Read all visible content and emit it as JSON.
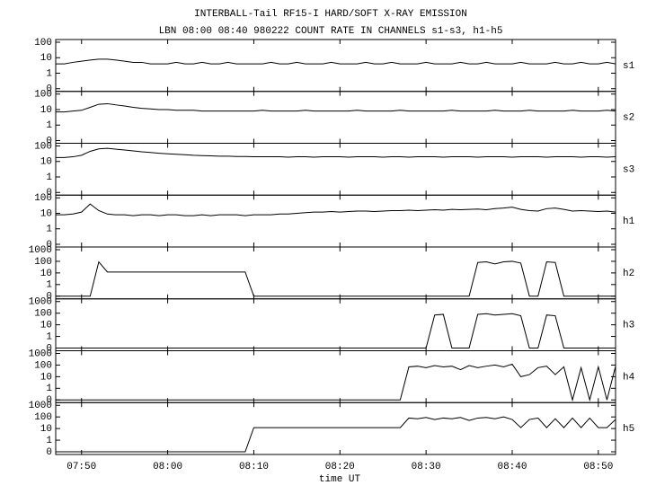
{
  "chart_data": {
    "type": "line",
    "title": "INTERBALL-Tail RF15-I HARD/SOFT X-RAY EMISSION",
    "subtitle": "LBN 08:00 08:40 980222  COUNT RATE IN CHANNELS s1-s3, h1-h5",
    "xlabel": "time UT",
    "yscale": "log",
    "color": "#000000",
    "xlim": [
      "07:47",
      "08:52"
    ],
    "xticks": [
      "07:50",
      "08:00",
      "08:10",
      "08:20",
      "08:30",
      "08:40",
      "08:50"
    ],
    "x": [
      "07:47",
      "07:48",
      "07:49",
      "07:50",
      "07:51",
      "07:52",
      "07:53",
      "07:54",
      "07:55",
      "07:56",
      "07:57",
      "07:58",
      "07:59",
      "08:00",
      "08:01",
      "08:02",
      "08:03",
      "08:04",
      "08:05",
      "08:06",
      "08:07",
      "08:08",
      "08:09",
      "08:10",
      "08:11",
      "08:12",
      "08:13",
      "08:14",
      "08:15",
      "08:16",
      "08:17",
      "08:18",
      "08:19",
      "08:20",
      "08:21",
      "08:22",
      "08:23",
      "08:24",
      "08:25",
      "08:26",
      "08:27",
      "08:28",
      "08:29",
      "08:30",
      "08:31",
      "08:32",
      "08:33",
      "08:34",
      "08:35",
      "08:36",
      "08:37",
      "08:38",
      "08:39",
      "08:40",
      "08:41",
      "08:42",
      "08:43",
      "08:44",
      "08:45",
      "08:46",
      "08:47",
      "08:48",
      "08:49",
      "08:50",
      "08:51",
      "08:52"
    ],
    "panels": [
      {
        "name": "s1",
        "ylim": [
          0,
          100
        ],
        "yticks": [
          0,
          1,
          10,
          100
        ],
        "values": [
          4,
          4,
          5,
          6,
          7,
          8,
          8,
          7,
          6,
          5,
          5,
          4,
          4,
          4,
          5,
          4,
          4,
          5,
          4,
          4,
          5,
          4,
          4,
          4,
          4,
          5,
          4,
          4,
          5,
          4,
          4,
          4,
          5,
          4,
          4,
          4,
          5,
          4,
          4,
          5,
          4,
          4,
          4,
          5,
          4,
          4,
          4,
          5,
          4,
          4,
          5,
          4,
          4,
          4,
          5,
          4,
          4,
          4,
          5,
          4,
          4,
          5,
          4,
          4,
          5,
          4
        ]
      },
      {
        "name": "s2",
        "ylim": [
          0,
          100
        ],
        "yticks": [
          0,
          1,
          10,
          100
        ],
        "values": [
          7,
          7,
          8,
          9,
          14,
          22,
          24,
          20,
          17,
          14,
          12,
          11,
          10,
          10,
          9,
          9,
          9,
          8,
          8,
          8,
          8,
          8,
          8,
          8,
          9,
          8,
          8,
          8,
          8,
          9,
          8,
          8,
          8,
          8,
          8,
          9,
          8,
          8,
          8,
          8,
          9,
          8,
          8,
          8,
          8,
          8,
          9,
          8,
          8,
          8,
          8,
          9,
          8,
          8,
          8,
          9,
          8,
          8,
          8,
          8,
          9,
          8,
          8,
          8,
          9,
          8
        ]
      },
      {
        "name": "s3",
        "ylim": [
          0,
          100
        ],
        "yticks": [
          0,
          1,
          10,
          100
        ],
        "values": [
          18,
          18,
          20,
          25,
          45,
          65,
          70,
          62,
          55,
          48,
          42,
          38,
          34,
          31,
          29,
          27,
          25,
          24,
          23,
          22,
          22,
          21,
          21,
          20,
          20,
          20,
          20,
          19,
          20,
          20,
          19,
          20,
          20,
          20,
          19,
          20,
          20,
          20,
          19,
          20,
          20,
          19,
          20,
          20,
          20,
          19,
          20,
          20,
          20,
          19,
          20,
          20,
          20,
          19,
          20,
          20,
          20,
          19,
          20,
          20,
          20,
          19,
          20,
          20,
          19,
          20
        ]
      },
      {
        "name": "h1",
        "ylim": [
          0,
          100
        ],
        "yticks": [
          0,
          1,
          10,
          100
        ],
        "values": [
          8,
          8,
          9,
          12,
          40,
          15,
          9,
          8,
          8,
          7,
          8,
          8,
          7,
          8,
          8,
          7,
          7,
          8,
          7,
          8,
          8,
          8,
          7,
          8,
          8,
          8,
          9,
          9,
          10,
          11,
          12,
          12,
          13,
          12,
          13,
          14,
          14,
          13,
          14,
          15,
          15,
          16,
          15,
          16,
          17,
          16,
          18,
          17,
          18,
          19,
          17,
          20,
          22,
          25,
          18,
          15,
          14,
          20,
          22,
          18,
          14,
          15,
          14,
          13,
          14,
          12
        ]
      },
      {
        "name": "h2",
        "ylim": [
          0,
          1000
        ],
        "yticks": [
          0,
          1,
          10,
          100,
          1000
        ],
        "values": [
          0,
          0,
          0,
          0,
          0,
          90,
          12,
          12,
          12,
          12,
          12,
          12,
          12,
          12,
          12,
          12,
          12,
          12,
          12,
          12,
          12,
          12,
          12,
          0,
          0,
          0,
          0,
          0,
          0,
          0,
          0,
          0,
          0,
          0,
          0,
          0,
          0,
          0,
          0,
          0,
          0,
          0,
          0,
          0,
          0,
          0,
          0,
          0,
          0,
          80,
          90,
          60,
          90,
          100,
          70,
          0,
          0,
          90,
          80,
          0,
          0,
          0,
          0,
          0,
          0,
          0
        ]
      },
      {
        "name": "h3",
        "ylim": [
          0,
          1000
        ],
        "yticks": [
          0,
          1,
          10,
          100,
          1000
        ],
        "values": [
          0,
          0,
          0,
          0,
          0,
          0,
          0,
          0,
          0,
          0,
          0,
          0,
          0,
          0,
          0,
          0,
          0,
          0,
          0,
          0,
          0,
          0,
          0,
          0,
          0,
          0,
          0,
          0,
          0,
          0,
          0,
          0,
          0,
          0,
          0,
          0,
          0,
          0,
          0,
          0,
          0,
          0,
          0,
          0,
          70,
          80,
          0,
          0,
          0,
          80,
          90,
          70,
          80,
          90,
          60,
          0,
          0,
          70,
          60,
          0,
          0,
          0,
          0,
          0,
          0,
          0
        ]
      },
      {
        "name": "h4",
        "ylim": [
          0,
          1000
        ],
        "yticks": [
          0,
          1,
          10,
          100,
          1000
        ],
        "values": [
          0,
          0,
          0,
          0,
          0,
          0,
          0,
          0,
          0,
          0,
          0,
          0,
          0,
          0,
          0,
          0,
          0,
          0,
          0,
          0,
          0,
          0,
          0,
          0,
          0,
          0,
          0,
          0,
          0,
          0,
          0,
          0,
          0,
          0,
          0,
          0,
          0,
          0,
          0,
          0,
          0,
          70,
          80,
          60,
          90,
          70,
          80,
          40,
          90,
          60,
          80,
          100,
          70,
          120,
          10,
          15,
          60,
          80,
          15,
          70,
          0,
          60,
          0,
          70,
          0,
          80
        ]
      },
      {
        "name": "h5",
        "ylim": [
          0,
          1000
        ],
        "yticks": [
          0,
          1,
          10,
          100,
          1000
        ],
        "values": [
          0,
          0,
          0,
          0,
          0,
          0,
          0,
          0,
          0,
          0,
          0,
          0,
          0,
          0,
          0,
          0,
          0,
          0,
          0,
          0,
          0,
          0,
          0,
          12,
          12,
          12,
          12,
          12,
          12,
          12,
          12,
          12,
          12,
          12,
          12,
          12,
          12,
          12,
          12,
          12,
          12,
          80,
          70,
          90,
          60,
          80,
          70,
          90,
          50,
          80,
          90,
          70,
          100,
          60,
          12,
          60,
          80,
          12,
          70,
          12,
          80,
          12,
          80,
          12,
          12,
          60
        ]
      }
    ]
  }
}
